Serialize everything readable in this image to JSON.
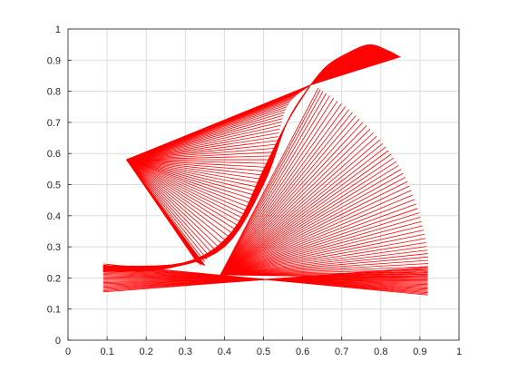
{
  "chart_data": {
    "type": "line",
    "title": "",
    "xlabel": "",
    "ylabel": "",
    "xlim": [
      0,
      1
    ],
    "ylim": [
      0,
      1
    ],
    "xticks": [
      "0",
      "0.1",
      "0.2",
      "0.3",
      "0.4",
      "0.5",
      "0.6",
      "0.7",
      "0.8",
      "0.9",
      "1"
    ],
    "yticks": [
      "0",
      "0.1",
      "0.2",
      "0.3",
      "0.4",
      "0.5",
      "0.6",
      "0.7",
      "0.8",
      "0.9",
      "1"
    ],
    "grid": true,
    "line_color": "#ff0000",
    "series": [
      {
        "values": {
          "upper_arm_start": [
            0.15,
            0.58
          ],
          "upper_arm_elbow": [
            0.62,
            0.82
          ],
          "upper_arm_tip_arc": [
            [
              0.62,
              0.82
            ],
            [
              0.66,
              0.88
            ],
            [
              0.71,
              0.92
            ],
            [
              0.77,
              0.95
            ],
            [
              0.82,
              0.93
            ],
            [
              0.85,
              0.91
            ]
          ],
          "lower_arm_fan_pivot": [
            0.39,
            0.21
          ],
          "lower_arm_fan_arc": [
            [
              0.64,
              0.81
            ],
            [
              0.72,
              0.74
            ],
            [
              0.8,
              0.64
            ],
            [
              0.86,
              0.53
            ],
            [
              0.9,
              0.4
            ],
            [
              0.92,
              0.28
            ],
            [
              0.92,
              0.2
            ]
          ],
          "base_left": [
            0.09,
            0.19
          ],
          "base_right": [
            0.92,
            0.17
          ],
          "diagonal_sweep": [
            [
              0.34,
              0.24
            ],
            [
              0.45,
              0.39
            ],
            [
              0.52,
              0.58
            ],
            [
              0.56,
              0.75
            ],
            [
              0.62,
              0.82
            ]
          ]
        }
      }
    ]
  }
}
